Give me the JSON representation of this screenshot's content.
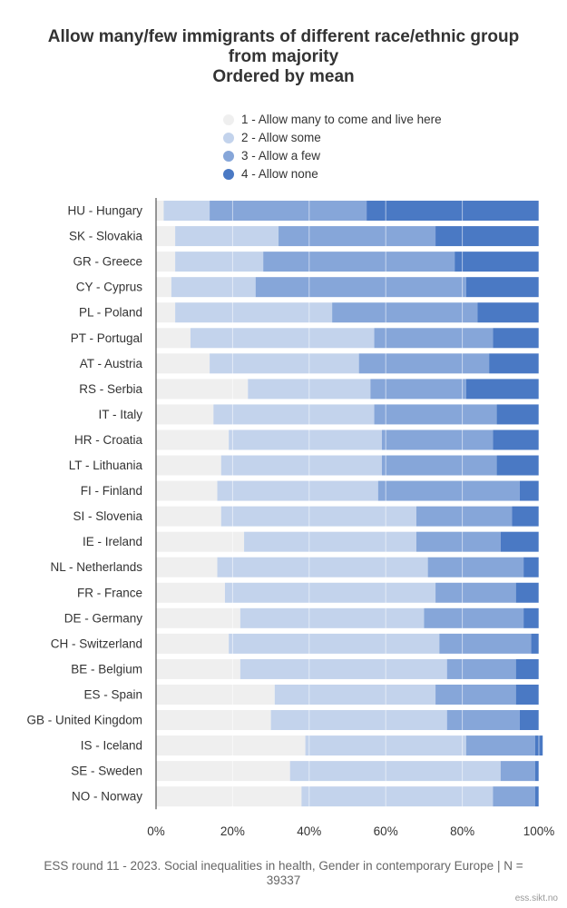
{
  "chart_data": {
    "type": "bar",
    "orientation": "horizontal",
    "stacked": true,
    "title": [
      "Allow many/few immigrants of different race/ethnic group",
      "from majority",
      "Ordered by mean"
    ],
    "categories": [
      "HU - Hungary",
      "SK - Slovakia",
      "GR - Greece",
      "CY - Cyprus",
      "PL - Poland",
      "PT - Portugal",
      "AT - Austria",
      "RS - Serbia",
      "IT - Italy",
      "HR - Croatia",
      "LT - Lithuania",
      "FI - Finland",
      "SI - Slovenia",
      "IE - Ireland",
      "NL - Netherlands",
      "FR - France",
      "DE - Germany",
      "CH - Switzerland",
      "BE - Belgium",
      "ES - Spain",
      "GB - United Kingdom",
      "IS - Iceland",
      "SE - Sweden",
      "NO - Norway"
    ],
    "series": [
      {
        "name": "1 - Allow many to come and live here",
        "color": "#efefef",
        "values": [
          2,
          5,
          5,
          4,
          5,
          9,
          14,
          24,
          15,
          19,
          17,
          16,
          17,
          23,
          16,
          18,
          22,
          19,
          22,
          31,
          30,
          39,
          35,
          38
        ]
      },
      {
        "name": "2 - Allow some",
        "color": "#c3d3ec",
        "values": [
          12,
          27,
          23,
          22,
          41,
          48,
          39,
          32,
          42,
          40,
          42,
          42,
          51,
          45,
          55,
          55,
          48,
          55,
          54,
          42,
          46,
          42,
          55,
          50
        ]
      },
      {
        "name": "3 - Allow a few",
        "color": "#86a6d9",
        "values": [
          41,
          41,
          50,
          55,
          38,
          31,
          34,
          25,
          32,
          29,
          30,
          37,
          25,
          22,
          25,
          21,
          26,
          24,
          18,
          21,
          19,
          18,
          9,
          11
        ]
      },
      {
        "name": "4 - Allow none",
        "color": "#4a79c4",
        "values": [
          45,
          27,
          22,
          19,
          16,
          12,
          13,
          19,
          11,
          12,
          11,
          5,
          7,
          10,
          4,
          6,
          4,
          2,
          6,
          6,
          5,
          2,
          1,
          1
        ]
      }
    ],
    "xlim": [
      0,
      100
    ],
    "xticks": [
      "0%",
      "20%",
      "40%",
      "60%",
      "80%",
      "100%"
    ],
    "grid": true,
    "legend_position": "top"
  },
  "footer": "ESS round 11 - 2023. Social inequalities in health, Gender in contemporary Europe | N = 39337",
  "credit": "ess.sikt.no"
}
